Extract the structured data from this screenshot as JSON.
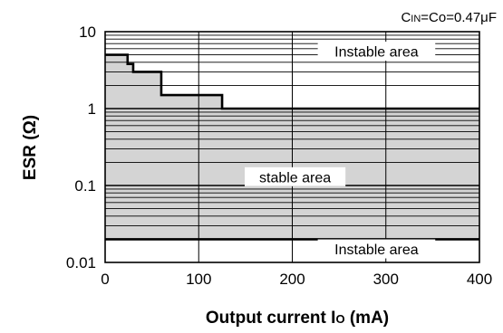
{
  "chart_data": {
    "type": "area",
    "annotation_top_right": "CIN=Co=0.47μF",
    "annotation_parts": {
      "c": "C",
      "in": "IN",
      "rest": "=Co=0.47μF"
    },
    "xlabel_parts": {
      "main": "Output current I",
      "sub": "O",
      "unit": " (mA)"
    },
    "ylabel": "ESR (Ω)",
    "xlim": [
      0,
      400
    ],
    "ylim": [
      0.01,
      10
    ],
    "y_scale": "log",
    "x_ticks": [
      "0",
      "100",
      "200",
      "300",
      "400"
    ],
    "y_ticks": [
      "0.01",
      "0.1",
      "1",
      "10"
    ],
    "grid": "on",
    "regions": [
      {
        "label": "Instable area",
        "position": "top"
      },
      {
        "label": "stable area",
        "position": "middle"
      },
      {
        "label": "Instable area",
        "position": "bottom"
      }
    ],
    "stable_upper_boundary": {
      "x": [
        0,
        24,
        24,
        30,
        30,
        60,
        60,
        125,
        125,
        400
      ],
      "y": [
        5,
        5,
        3.8,
        3.8,
        3,
        3,
        1.5,
        1.5,
        1.0,
        1.0
      ]
    },
    "stable_lower_boundary": {
      "y": 0.02
    },
    "colors": {
      "stable_fill": "#d4d4d4",
      "line": "#000000",
      "background": "#ffffff"
    }
  }
}
